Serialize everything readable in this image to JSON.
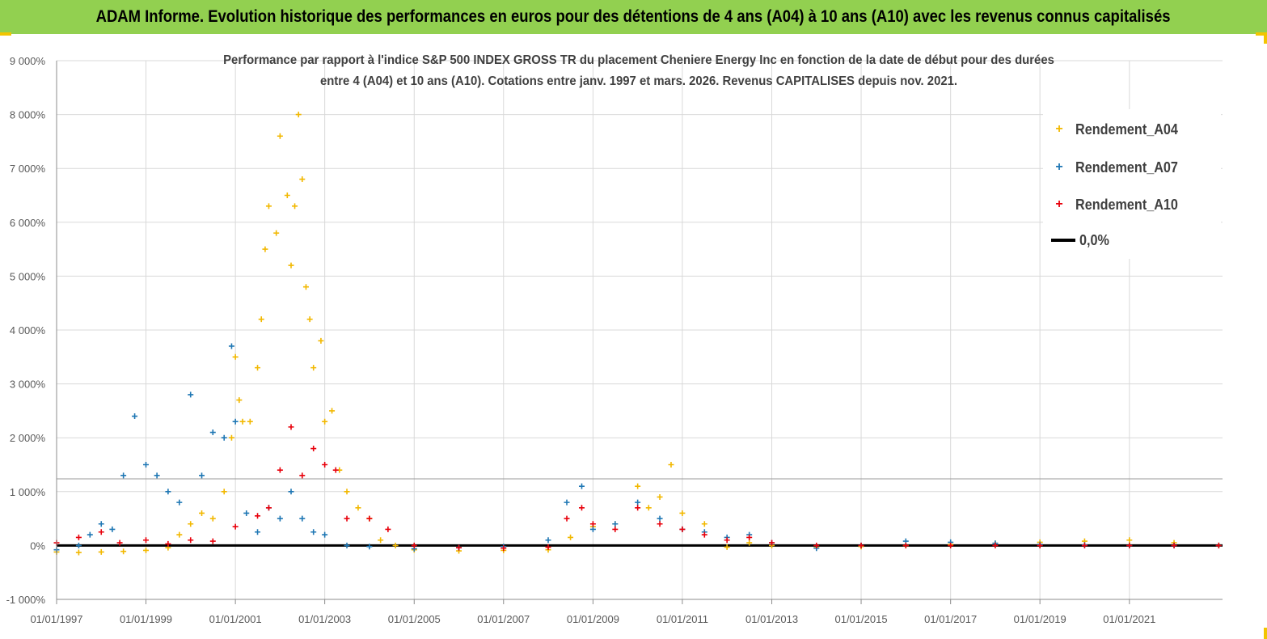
{
  "header": {
    "title": "ADAM Informe. Evolution historique des performances en euros pour des détentions de 4 ans (A04) à 10 ans (A10) avec les revenus connus capitalisés"
  },
  "chart_data": {
    "type": "scatter",
    "title_line1": "Performance par rapport à l'indice S&P 500 INDEX GROSS TR  du placement Cheniere Energy Inc en fonction de la date de début pour des durées",
    "title_line2": "entre 4 (A04) et 10 ans (A10). Cotations entre janv. 1997 et mars. 2026. Revenus CAPITALISES depuis nov. 2021.",
    "ylim": [
      -1000,
      9000
    ],
    "yticks": [
      "-1 000%",
      "0%",
      "1 000%",
      "2 000%",
      "3 000%",
      "4 000%",
      "5 000%",
      "6 000%",
      "7 000%",
      "8 000%",
      "9 000%"
    ],
    "xlim": [
      "1997-01-01",
      "2023-02-01"
    ],
    "xticks": [
      "01/01/1997",
      "01/01/1999",
      "01/01/2001",
      "01/01/2003",
      "01/01/2005",
      "01/01/2007",
      "01/01/2009",
      "01/01/2011",
      "01/01/2013",
      "01/01/2015",
      "01/01/2017",
      "01/01/2019",
      "01/01/2021"
    ],
    "grid": true,
    "legend_position": "top-right",
    "series": [
      {
        "name": "Rendement_A04",
        "color": "#f2b800",
        "marker": "+",
        "points": [
          [
            "1997-01-01",
            -120
          ],
          [
            "1997-07-01",
            -130
          ],
          [
            "1998-01-01",
            -120
          ],
          [
            "1998-07-01",
            -110
          ],
          [
            "1999-01-01",
            -90
          ],
          [
            "1999-07-01",
            -40
          ],
          [
            "1999-10-01",
            200
          ],
          [
            "2000-01-01",
            400
          ],
          [
            "2000-04-01",
            600
          ],
          [
            "2000-07-01",
            500
          ],
          [
            "2000-10-01",
            1000
          ],
          [
            "2000-12-01",
            2000
          ],
          [
            "2001-01-01",
            3500
          ],
          [
            "2001-02-01",
            2700
          ],
          [
            "2001-03-01",
            2300
          ],
          [
            "2001-05-01",
            2300
          ],
          [
            "2001-07-01",
            3300
          ],
          [
            "2001-08-01",
            4200
          ],
          [
            "2001-09-01",
            5500
          ],
          [
            "2001-10-01",
            6300
          ],
          [
            "2001-12-01",
            5800
          ],
          [
            "2002-01-01",
            7600
          ],
          [
            "2002-03-01",
            6500
          ],
          [
            "2002-04-01",
            5200
          ],
          [
            "2002-05-01",
            6300
          ],
          [
            "2002-06-01",
            8000
          ],
          [
            "2002-07-01",
            6800
          ],
          [
            "2002-08-01",
            4800
          ],
          [
            "2002-09-01",
            4200
          ],
          [
            "2002-10-01",
            3300
          ],
          [
            "2002-12-01",
            3800
          ],
          [
            "2003-01-01",
            2300
          ],
          [
            "2003-03-01",
            2500
          ],
          [
            "2003-05-01",
            1400
          ],
          [
            "2003-07-01",
            1000
          ],
          [
            "2003-10-01",
            700
          ],
          [
            "2004-01-01",
            500
          ],
          [
            "2004-04-01",
            100
          ],
          [
            "2004-08-01",
            0
          ],
          [
            "2005-01-01",
            -80
          ],
          [
            "2006-01-01",
            -100
          ],
          [
            "2007-01-01",
            -90
          ],
          [
            "2008-01-01",
            -80
          ],
          [
            "2008-07-01",
            150
          ],
          [
            "2009-01-01",
            350
          ],
          [
            "2009-07-01",
            400
          ],
          [
            "2010-01-01",
            1100
          ],
          [
            "2010-04-01",
            700
          ],
          [
            "2010-07-01",
            900
          ],
          [
            "2010-10-01",
            1500
          ],
          [
            "2011-01-01",
            600
          ],
          [
            "2011-07-01",
            400
          ],
          [
            "2012-01-01",
            -30
          ],
          [
            "2012-07-01",
            50
          ],
          [
            "2013-01-01",
            0
          ],
          [
            "2014-01-01",
            -40
          ],
          [
            "2015-01-01",
            -20
          ],
          [
            "2016-01-01",
            0
          ],
          [
            "2017-01-01",
            20
          ],
          [
            "2018-01-01",
            40
          ],
          [
            "2019-01-01",
            60
          ],
          [
            "2020-01-01",
            80
          ],
          [
            "2021-01-01",
            100
          ],
          [
            "2022-01-01",
            50
          ],
          [
            "2023-01-01",
            0
          ]
        ]
      },
      {
        "name": "Rendement_A07",
        "color": "#1f77b4",
        "marker": "+",
        "points": [
          [
            "1997-01-01",
            -80
          ],
          [
            "1997-07-01",
            0
          ],
          [
            "1997-10-01",
            200
          ],
          [
            "1998-01-01",
            400
          ],
          [
            "1998-04-01",
            300
          ],
          [
            "1998-07-01",
            1300
          ],
          [
            "1998-10-01",
            2400
          ],
          [
            "1999-01-01",
            1500
          ],
          [
            "1999-04-01",
            1300
          ],
          [
            "1999-07-01",
            1000
          ],
          [
            "1999-10-01",
            800
          ],
          [
            "2000-01-01",
            2800
          ],
          [
            "2000-04-01",
            1300
          ],
          [
            "2000-07-01",
            2100
          ],
          [
            "2000-10-01",
            2000
          ],
          [
            "2000-12-01",
            3700
          ],
          [
            "2001-01-01",
            2300
          ],
          [
            "2001-04-01",
            600
          ],
          [
            "2001-07-01",
            250
          ],
          [
            "2001-10-01",
            700
          ],
          [
            "2002-01-01",
            500
          ],
          [
            "2002-04-01",
            1000
          ],
          [
            "2002-07-01",
            500
          ],
          [
            "2002-10-01",
            250
          ],
          [
            "2003-01-01",
            200
          ],
          [
            "2003-07-01",
            0
          ],
          [
            "2004-01-01",
            -20
          ],
          [
            "2005-01-01",
            -60
          ],
          [
            "2006-01-01",
            -40
          ],
          [
            "2007-01-01",
            -20
          ],
          [
            "2008-01-01",
            100
          ],
          [
            "2008-06-01",
            800
          ],
          [
            "2008-10-01",
            1100
          ],
          [
            "2009-01-01",
            300
          ],
          [
            "2009-07-01",
            400
          ],
          [
            "2010-01-01",
            800
          ],
          [
            "2010-07-01",
            500
          ],
          [
            "2011-01-01",
            300
          ],
          [
            "2011-07-01",
            250
          ],
          [
            "2012-01-01",
            150
          ],
          [
            "2012-07-01",
            200
          ],
          [
            "2013-01-01",
            50
          ],
          [
            "2014-01-01",
            -50
          ],
          [
            "2015-01-01",
            0
          ],
          [
            "2016-01-01",
            80
          ],
          [
            "2017-01-01",
            60
          ],
          [
            "2018-01-01",
            40
          ],
          [
            "2019-01-01",
            20
          ],
          [
            "2020-01-01",
            10
          ],
          [
            "2021-01-01",
            0
          ],
          [
            "2022-01-01",
            0
          ],
          [
            "2023-01-01",
            0
          ]
        ]
      },
      {
        "name": "Rendement_A10",
        "color": "#e8000b",
        "marker": "+",
        "points": [
          [
            "1997-01-01",
            50
          ],
          [
            "1997-07-01",
            150
          ],
          [
            "1998-01-01",
            250
          ],
          [
            "1998-06-01",
            50
          ],
          [
            "1999-01-01",
            100
          ],
          [
            "1999-07-01",
            30
          ],
          [
            "2000-01-01",
            100
          ],
          [
            "2000-07-01",
            80
          ],
          [
            "2001-01-01",
            350
          ],
          [
            "2001-07-01",
            550
          ],
          [
            "2001-10-01",
            700
          ],
          [
            "2002-01-01",
            1400
          ],
          [
            "2002-04-01",
            2200
          ],
          [
            "2002-07-01",
            1300
          ],
          [
            "2002-10-01",
            1800
          ],
          [
            "2003-01-01",
            1500
          ],
          [
            "2003-04-01",
            1400
          ],
          [
            "2003-07-01",
            500
          ],
          [
            "2004-01-01",
            500
          ],
          [
            "2004-06-01",
            300
          ],
          [
            "2005-01-01",
            0
          ],
          [
            "2006-01-01",
            -40
          ],
          [
            "2007-01-01",
            -50
          ],
          [
            "2008-01-01",
            -30
          ],
          [
            "2008-06-01",
            500
          ],
          [
            "2008-10-01",
            700
          ],
          [
            "2009-01-01",
            400
          ],
          [
            "2009-07-01",
            300
          ],
          [
            "2010-01-01",
            700
          ],
          [
            "2010-07-01",
            400
          ],
          [
            "2011-01-01",
            300
          ],
          [
            "2011-07-01",
            200
          ],
          [
            "2012-01-01",
            100
          ],
          [
            "2012-07-01",
            150
          ],
          [
            "2013-01-01",
            50
          ],
          [
            "2014-01-01",
            0
          ],
          [
            "2015-01-01",
            0
          ],
          [
            "2016-01-01",
            0
          ],
          [
            "2017-01-01",
            0
          ],
          [
            "2018-01-01",
            0
          ],
          [
            "2019-01-01",
            0
          ],
          [
            "2020-01-01",
            0
          ],
          [
            "2021-01-01",
            0
          ],
          [
            "2022-01-01",
            0
          ],
          [
            "2023-01-01",
            0
          ]
        ]
      },
      {
        "name": "0,0%",
        "color": "#000000",
        "line": true,
        "points": [
          [
            "1997-01-01",
            0
          ],
          [
            "2023-02-01",
            0
          ]
        ]
      }
    ]
  }
}
